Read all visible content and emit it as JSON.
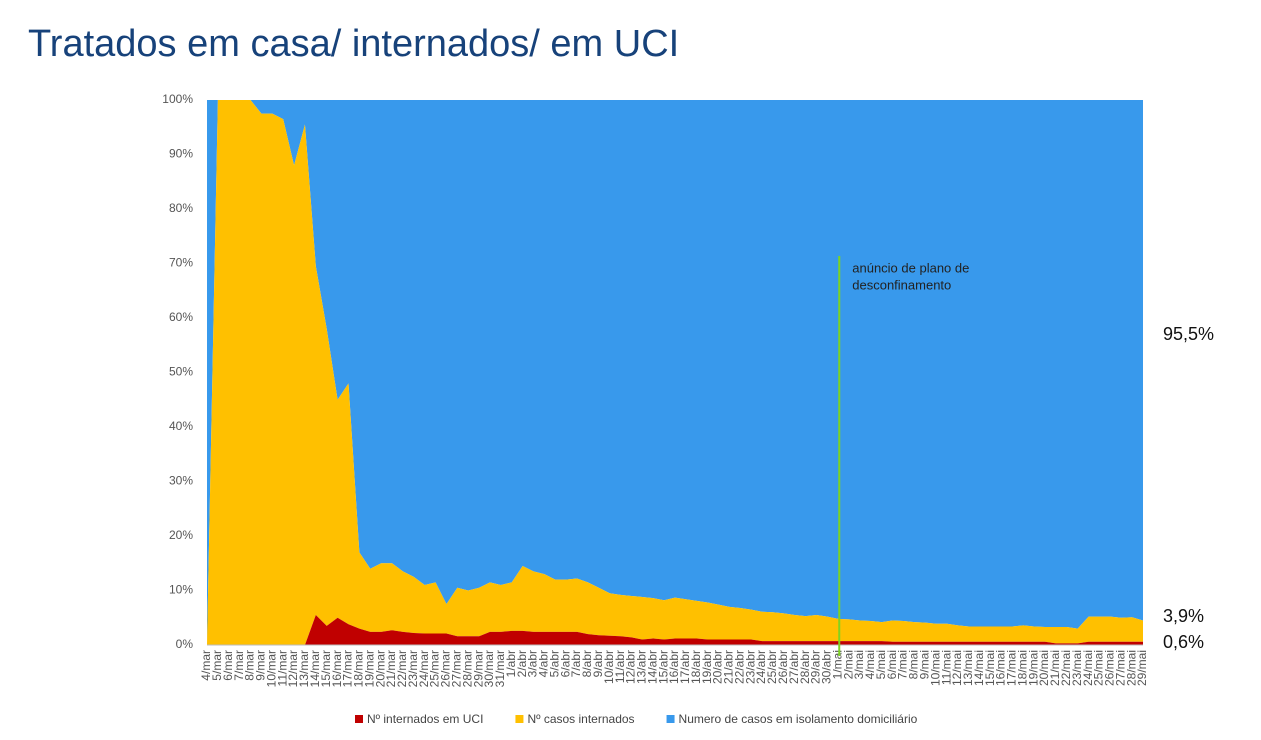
{
  "chart_data": {
    "type": "stacked_area",
    "title": "Tratados em casa/ internados/ em UCI",
    "categories": [
      "4/mar",
      "5/mar",
      "6/mar",
      "7/mar",
      "8/mar",
      "9/mar",
      "10/mar",
      "11/mar",
      "12/mar",
      "13/mar",
      "14/mar",
      "15/mar",
      "16/mar",
      "17/mar",
      "18/mar",
      "19/mar",
      "20/mar",
      "21/mar",
      "22/mar",
      "23/mar",
      "24/mar",
      "25/mar",
      "26/mar",
      "27/mar",
      "28/mar",
      "29/mar",
      "30/mar",
      "31/mar",
      "1/abr",
      "2/abr",
      "3/abr",
      "4/abr",
      "5/abr",
      "6/abr",
      "7/abr",
      "8/abr",
      "9/abr",
      "10/abr",
      "11/abr",
      "12/abr",
      "13/abr",
      "14/abr",
      "15/abr",
      "16/abr",
      "17/abr",
      "18/abr",
      "19/abr",
      "20/abr",
      "21/abr",
      "22/abr",
      "23/abr",
      "24/abr",
      "25/abr",
      "26/abr",
      "27/abr",
      "28/abr",
      "29/abr",
      "30/abr",
      "1/mai",
      "2/mai",
      "3/mai",
      "4/mai",
      "5/mai",
      "6/mai",
      "7/mai",
      "8/mai",
      "9/mai",
      "10/mai",
      "11/mai",
      "12/mai",
      "13/mai",
      "14/mai",
      "15/mai",
      "16/mai",
      "17/mai",
      "18/mai",
      "19/mai",
      "20/mai",
      "21/mai",
      "22/mai",
      "23/mai",
      "24/mai",
      "25/mai",
      "26/mai",
      "27/mai",
      "28/mai",
      "29/mai"
    ],
    "series": [
      {
        "name": "Nº internados em UCI",
        "color": "#c00000",
        "values": [
          0,
          0,
          0,
          0,
          0,
          0,
          0,
          0,
          0,
          0,
          5.5,
          3.5,
          5,
          3.8,
          3,
          2.4,
          2.4,
          2.7,
          2.4,
          2.2,
          2.1,
          2.1,
          2.1,
          1.6,
          1.6,
          1.6,
          2.4,
          2.4,
          2.6,
          2.6,
          2.4,
          2.4,
          2.4,
          2.4,
          2.4,
          2.0,
          1.8,
          1.7,
          1.6,
          1.4,
          1.0,
          1.2,
          1.0,
          1.2,
          1.2,
          1.2,
          1.0,
          1.0,
          1.0,
          1.0,
          1.0,
          0.7,
          0.7,
          0.7,
          0.7,
          0.7,
          0.7,
          0.7,
          0.7,
          0.7,
          0.7,
          0.7,
          0.7,
          0.6,
          0.6,
          0.6,
          0.6,
          0.6,
          0.6,
          0.6,
          0.6,
          0.6,
          0.6,
          0.6,
          0.6,
          0.6,
          0.6,
          0.6,
          0.3,
          0.3,
          0.3,
          0.6,
          0.6,
          0.6,
          0.6,
          0.6,
          0.6
        ],
        "value_labels": [
          null,
          null,
          null,
          null,
          null,
          null,
          null,
          null,
          null,
          null,
          null,
          null,
          null,
          null,
          null,
          null,
          null,
          null,
          null,
          null,
          null,
          null,
          null,
          null,
          null,
          null,
          null,
          null,
          null,
          null,
          null,
          null,
          null,
          null,
          null,
          null,
          null,
          null,
          null,
          null,
          null,
          null,
          null,
          null,
          null,
          null,
          null,
          null,
          null,
          null,
          null,
          null,
          null,
          null,
          null,
          null,
          null,
          null,
          null,
          null,
          null,
          null,
          null,
          null,
          null,
          null,
          null,
          null,
          null,
          null,
          null,
          null,
          null,
          null,
          null,
          null,
          null,
          null,
          null,
          null,
          null,
          null,
          null,
          null,
          null,
          null,
          "0,6%"
        ]
      },
      {
        "name": "Nº casos internados",
        "color": "#ffc000",
        "values": [
          0,
          100,
          100,
          100,
          100,
          97.5,
          97.5,
          96.5,
          88,
          95.5,
          64,
          54.5,
          40,
          44.2,
          14,
          11.6,
          12.6,
          12.3,
          11.1,
          10.3,
          8.9,
          9.4,
          5.4,
          8.9,
          8.4,
          8.9,
          9.1,
          8.6,
          8.9,
          11.9,
          11.1,
          10.6,
          9.6,
          9.6,
          9.8,
          9.5,
          8.7,
          7.8,
          7.6,
          7.6,
          7.8,
          7.4,
          7.2,
          7.5,
          7.2,
          6.9,
          6.8,
          6.4,
          6.0,
          5.8,
          5.5,
          5.4,
          5.3,
          5.1,
          4.8,
          4.6,
          4.8,
          4.5,
          4.1,
          4.0,
          3.8,
          3.7,
          3.5,
          3.9,
          3.8,
          3.6,
          3.5,
          3.3,
          3.3,
          3.0,
          2.8,
          2.8,
          2.8,
          2.8,
          2.8,
          3.0,
          2.8,
          2.7,
          3.0,
          3.0,
          2.7,
          4.6,
          4.6,
          4.6,
          4.4,
          4.5,
          3.9
        ],
        "value_labels": [
          null,
          null,
          null,
          null,
          null,
          null,
          null,
          null,
          null,
          null,
          null,
          null,
          null,
          null,
          null,
          null,
          null,
          null,
          null,
          null,
          null,
          null,
          null,
          null,
          null,
          null,
          null,
          null,
          null,
          null,
          null,
          null,
          null,
          null,
          null,
          null,
          null,
          null,
          null,
          null,
          null,
          null,
          null,
          null,
          null,
          null,
          null,
          null,
          null,
          null,
          null,
          null,
          null,
          null,
          null,
          null,
          null,
          null,
          null,
          null,
          null,
          null,
          null,
          null,
          null,
          null,
          null,
          null,
          null,
          null,
          null,
          null,
          null,
          null,
          null,
          null,
          null,
          null,
          null,
          null,
          null,
          null,
          null,
          null,
          null,
          null,
          "3,9%"
        ]
      },
      {
        "name": "Numero de casos em isolamento domiciliário",
        "color": "#3899ec",
        "values": [
          100,
          0,
          0,
          0,
          0,
          2.5,
          2.5,
          3.5,
          12,
          4.5,
          30.5,
          42,
          55,
          52,
          83,
          86,
          85,
          85,
          86.5,
          87.5,
          89,
          88.5,
          92.5,
          89.5,
          90,
          89.5,
          88.5,
          89,
          88.5,
          85.5,
          86.5,
          87,
          88,
          88,
          87.8,
          88.5,
          89.5,
          90.5,
          90.8,
          91,
          91.2,
          91.4,
          91.8,
          91.3,
          91.6,
          91.9,
          92.2,
          92.6,
          93,
          93.2,
          93.5,
          93.9,
          94,
          94.2,
          94.5,
          94.7,
          94.5,
          94.8,
          95.2,
          95.3,
          95.5,
          95.6,
          95.8,
          95.5,
          95.6,
          95.8,
          95.9,
          96.1,
          96.1,
          96.4,
          96.6,
          96.6,
          96.6,
          96.6,
          96.6,
          96.4,
          96.6,
          96.7,
          96.7,
          96.7,
          97,
          94.8,
          94.8,
          94.8,
          95,
          94.9,
          95.5
        ],
        "value_labels": [
          null,
          null,
          null,
          null,
          null,
          null,
          null,
          null,
          null,
          null,
          null,
          null,
          null,
          null,
          null,
          null,
          null,
          null,
          null,
          null,
          null,
          null,
          null,
          null,
          null,
          null,
          null,
          null,
          null,
          null,
          null,
          null,
          null,
          null,
          null,
          null,
          null,
          null,
          null,
          null,
          null,
          null,
          null,
          null,
          null,
          null,
          null,
          null,
          null,
          null,
          null,
          null,
          null,
          null,
          null,
          null,
          null,
          null,
          null,
          null,
          null,
          null,
          null,
          null,
          null,
          null,
          null,
          null,
          null,
          null,
          null,
          null,
          null,
          null,
          null,
          null,
          null,
          null,
          null,
          null,
          null,
          null,
          null,
          null,
          null,
          null,
          "95,5%"
        ]
      }
    ],
    "ylim": [
      0,
      100
    ],
    "yticks": [
      {
        "value": 0,
        "label": "0%"
      },
      {
        "value": 10,
        "label": "10%"
      },
      {
        "value": 20,
        "label": "20%"
      },
      {
        "value": 30,
        "label": "30%"
      },
      {
        "value": 40,
        "label": "40%"
      },
      {
        "value": 50,
        "label": "50%"
      },
      {
        "value": 60,
        "label": "60%"
      },
      {
        "value": 70,
        "label": "70%"
      },
      {
        "value": 80,
        "label": "80%"
      },
      {
        "value": 90,
        "label": "90%"
      },
      {
        "value": 100,
        "label": "100%"
      }
    ],
    "grid": false,
    "legend": "bottom",
    "annotation": {
      "lines": [
        "anúncio de plano de",
        "desconfinamento"
      ],
      "category": "1/mai",
      "color": "#7ed321"
    }
  }
}
